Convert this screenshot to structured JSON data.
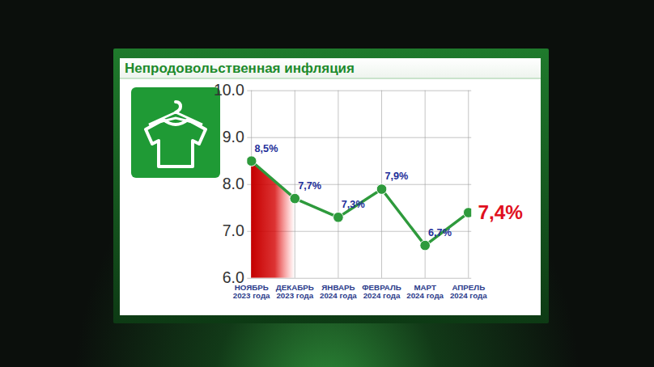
{
  "chart_data": {
    "type": "line",
    "title": "Непродовольственная инфляция",
    "categories": [
      "НОЯБРЬ 2023 года",
      "ДЕКАБРЬ 2023 года",
      "ЯНВАРЬ 2024 года",
      "ФЕВРАЛЬ 2024 года",
      "МАРТ 2024 года",
      "АПРЕЛЬ 2024 года"
    ],
    "values": [
      8.5,
      7.7,
      7.3,
      7.9,
      6.7,
      7.4
    ],
    "value_labels": [
      "8,5%",
      "7,7%",
      "7,3%",
      "7,9%",
      "6,7%",
      "7,4%"
    ],
    "color": "#2e9a3c",
    "ylim": [
      6,
      10
    ],
    "yticks": [
      6,
      7,
      8,
      9,
      10
    ],
    "grid": true,
    "data_labels": true,
    "marker": "circle"
  }
}
